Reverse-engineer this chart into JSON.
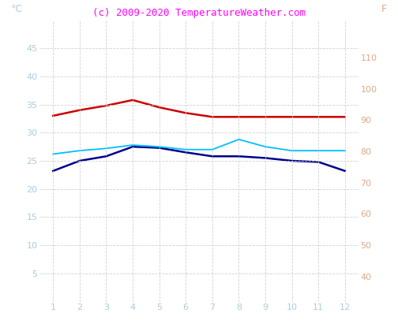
{
  "months": [
    1,
    2,
    3,
    4,
    5,
    6,
    7,
    8,
    9,
    10,
    11,
    12
  ],
  "red_line": [
    33.0,
    34.0,
    34.8,
    35.8,
    34.5,
    33.5,
    32.8,
    32.8,
    32.8,
    32.8,
    32.8,
    32.8
  ],
  "dark_blue_line": [
    23.2,
    25.0,
    25.8,
    27.5,
    27.3,
    26.5,
    25.8,
    25.8,
    25.5,
    25.0,
    24.8,
    23.2
  ],
  "cyan_line": [
    26.2,
    26.8,
    27.2,
    27.8,
    27.5,
    27.0,
    27.0,
    28.8,
    27.5,
    26.8,
    26.8,
    26.8
  ],
  "red_color": "#cc0000",
  "dark_blue_color": "#00008b",
  "cyan_color": "#00bfff",
  "ylabel_left": "°C",
  "ylabel_right": "F",
  "title": "(c) 2009-2020 TemperatureWeather.com",
  "title_color": "#ff00ff",
  "ylim_left": [
    0,
    50
  ],
  "ylim_right": [
    32,
    122
  ],
  "yticks_left": [
    5,
    10,
    15,
    20,
    25,
    30,
    35,
    40,
    45
  ],
  "yticks_right": [
    40,
    50,
    60,
    70,
    80,
    90,
    100,
    110
  ],
  "xticks": [
    1,
    2,
    3,
    4,
    5,
    6,
    7,
    8,
    9,
    10,
    11,
    12
  ],
  "left_tick_color": "#aaccdd",
  "right_tick_color": "#ddaa88",
  "x_tick_color": "#aaccdd",
  "grid_color": "#cccccc",
  "bg_color": "#ffffff",
  "tick_fontsize": 8,
  "title_fontsize": 9,
  "label_fontsize": 9
}
